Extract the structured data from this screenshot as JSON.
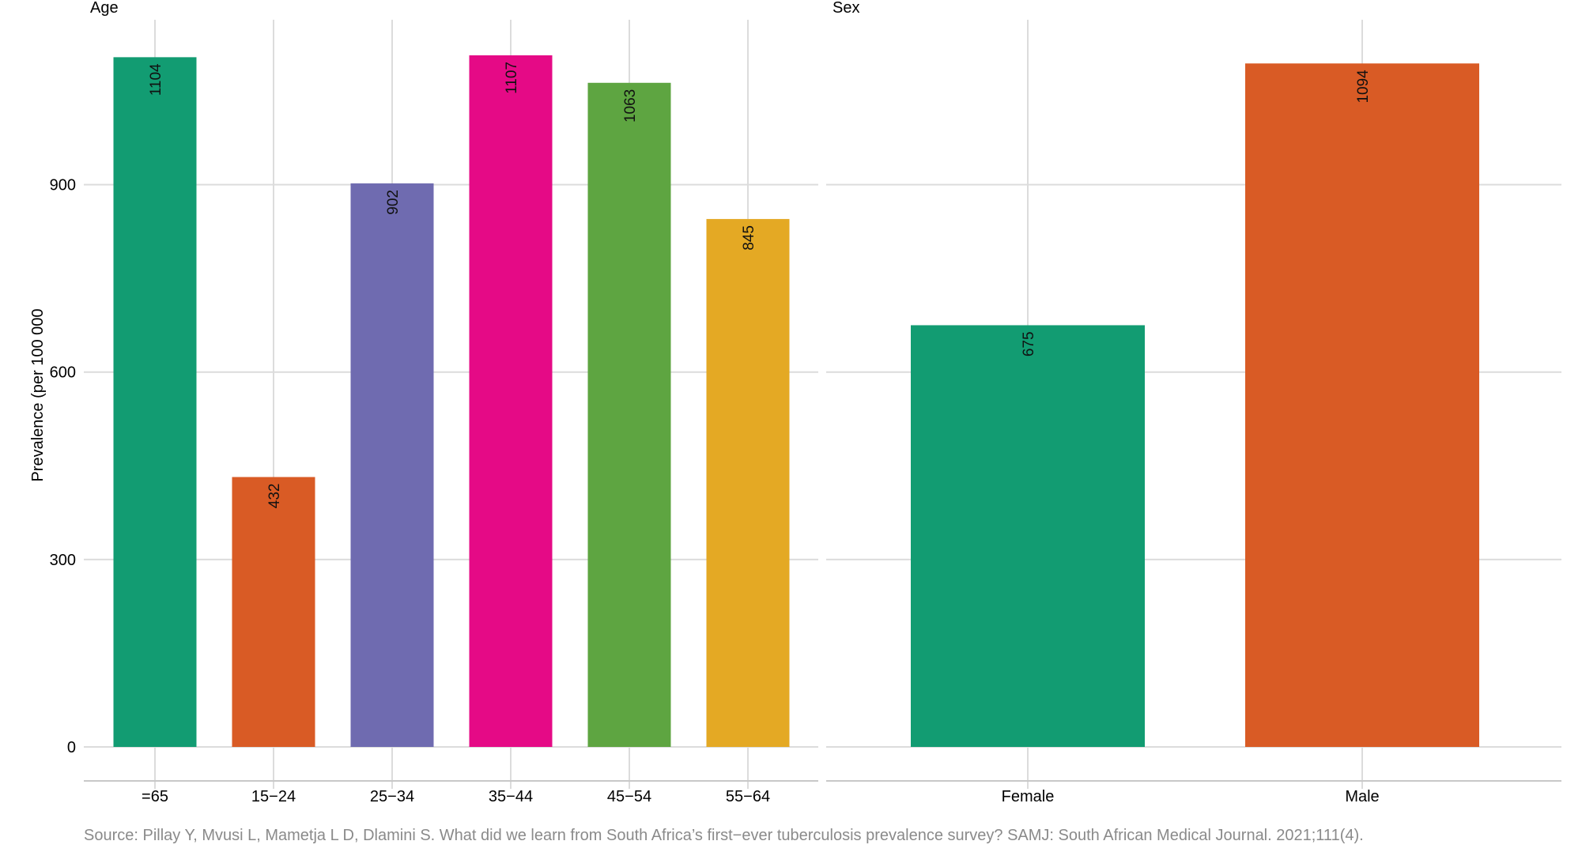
{
  "chart_data": [
    {
      "type": "bar",
      "panel_title": "Age",
      "ylabel": "Prevalence (per 100 000",
      "ylim": [
        0,
        1107
      ],
      "yticks": [
        0,
        300,
        600,
        900
      ],
      "grid": true,
      "categories": [
        "=65",
        "15−24",
        "25−34",
        "35−44",
        "45−54",
        "55−64"
      ],
      "values": [
        1104,
        432,
        902,
        1107,
        1063,
        845
      ],
      "data_labels": [
        "1104",
        "432",
        "902",
        "1107",
        "1063",
        "845"
      ],
      "colors": [
        "#129C72",
        "#D95B25",
        "#6F6BB0",
        "#E50A86",
        "#5EA541",
        "#E4A924"
      ]
    },
    {
      "type": "bar",
      "panel_title": "Sex",
      "ylim": [
        0,
        1107
      ],
      "yticks": [
        0,
        300,
        600,
        900
      ],
      "grid": true,
      "categories": [
        "Female",
        "Male"
      ],
      "values": [
        675,
        1094
      ],
      "data_labels": [
        "675",
        "1094"
      ],
      "colors": [
        "#129C72",
        "#D95B25"
      ]
    }
  ],
  "source": "Source: Pillay Y, Mvusi L, Mametja L D, Dlamini S. What did we learn from South Africa’s first−ever tuberculosis prevalence survey? SAMJ: South African Medical Journal. 2021;111(4)."
}
